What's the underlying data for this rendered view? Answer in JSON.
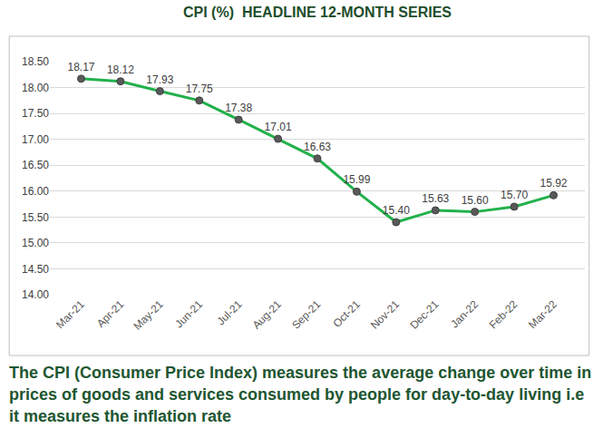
{
  "chart_data": {
    "type": "line",
    "title": "CPI (%)  HEADLINE 12-MONTH SERIES",
    "annotations": [
      "The CPI (Consumer Price Index) measures the average change over time in prices of goods and services consumed by people for day-to-day living i.e it measures the inflation rate"
    ],
    "categories": [
      "Mar-21",
      "Apr-21",
      "May-21",
      "Jun-21",
      "Jul-21",
      "Aug-21",
      "Sep-21",
      "Oct-21",
      "Nov-21",
      "Dec-21",
      "Jan-22",
      "Feb-22",
      "Mar-22"
    ],
    "values": [
      18.17,
      18.12,
      17.93,
      17.75,
      17.38,
      17.01,
      16.63,
      15.99,
      15.4,
      15.63,
      15.6,
      15.7,
      15.92
    ],
    "value_labels": [
      "18.17",
      "18.12",
      "17.93",
      "17.75",
      "17.38",
      "17.01",
      "16.63",
      "15.99",
      "15.40",
      "15.63",
      "15.60",
      "15.70",
      "15.92"
    ],
    "color": "#22b14c",
    "marker": "circle",
    "ylim": [
      14,
      18.5
    ],
    "yticks": [
      {
        "value": 14,
        "label": "14.00"
      },
      {
        "value": 14.5,
        "label": "14.50"
      },
      {
        "value": 15,
        "label": "15.00"
      },
      {
        "value": 15.5,
        "label": "15.50"
      },
      {
        "value": 16,
        "label": "16.00"
      },
      {
        "value": 16.5,
        "label": "16.50"
      },
      {
        "value": 17,
        "label": "17.00"
      },
      {
        "value": 17.5,
        "label": "17.50"
      },
      {
        "value": 18,
        "label": "18.00"
      },
      {
        "value": 18.5,
        "label": "18.50"
      }
    ],
    "grid": true,
    "data_labels": true
  }
}
